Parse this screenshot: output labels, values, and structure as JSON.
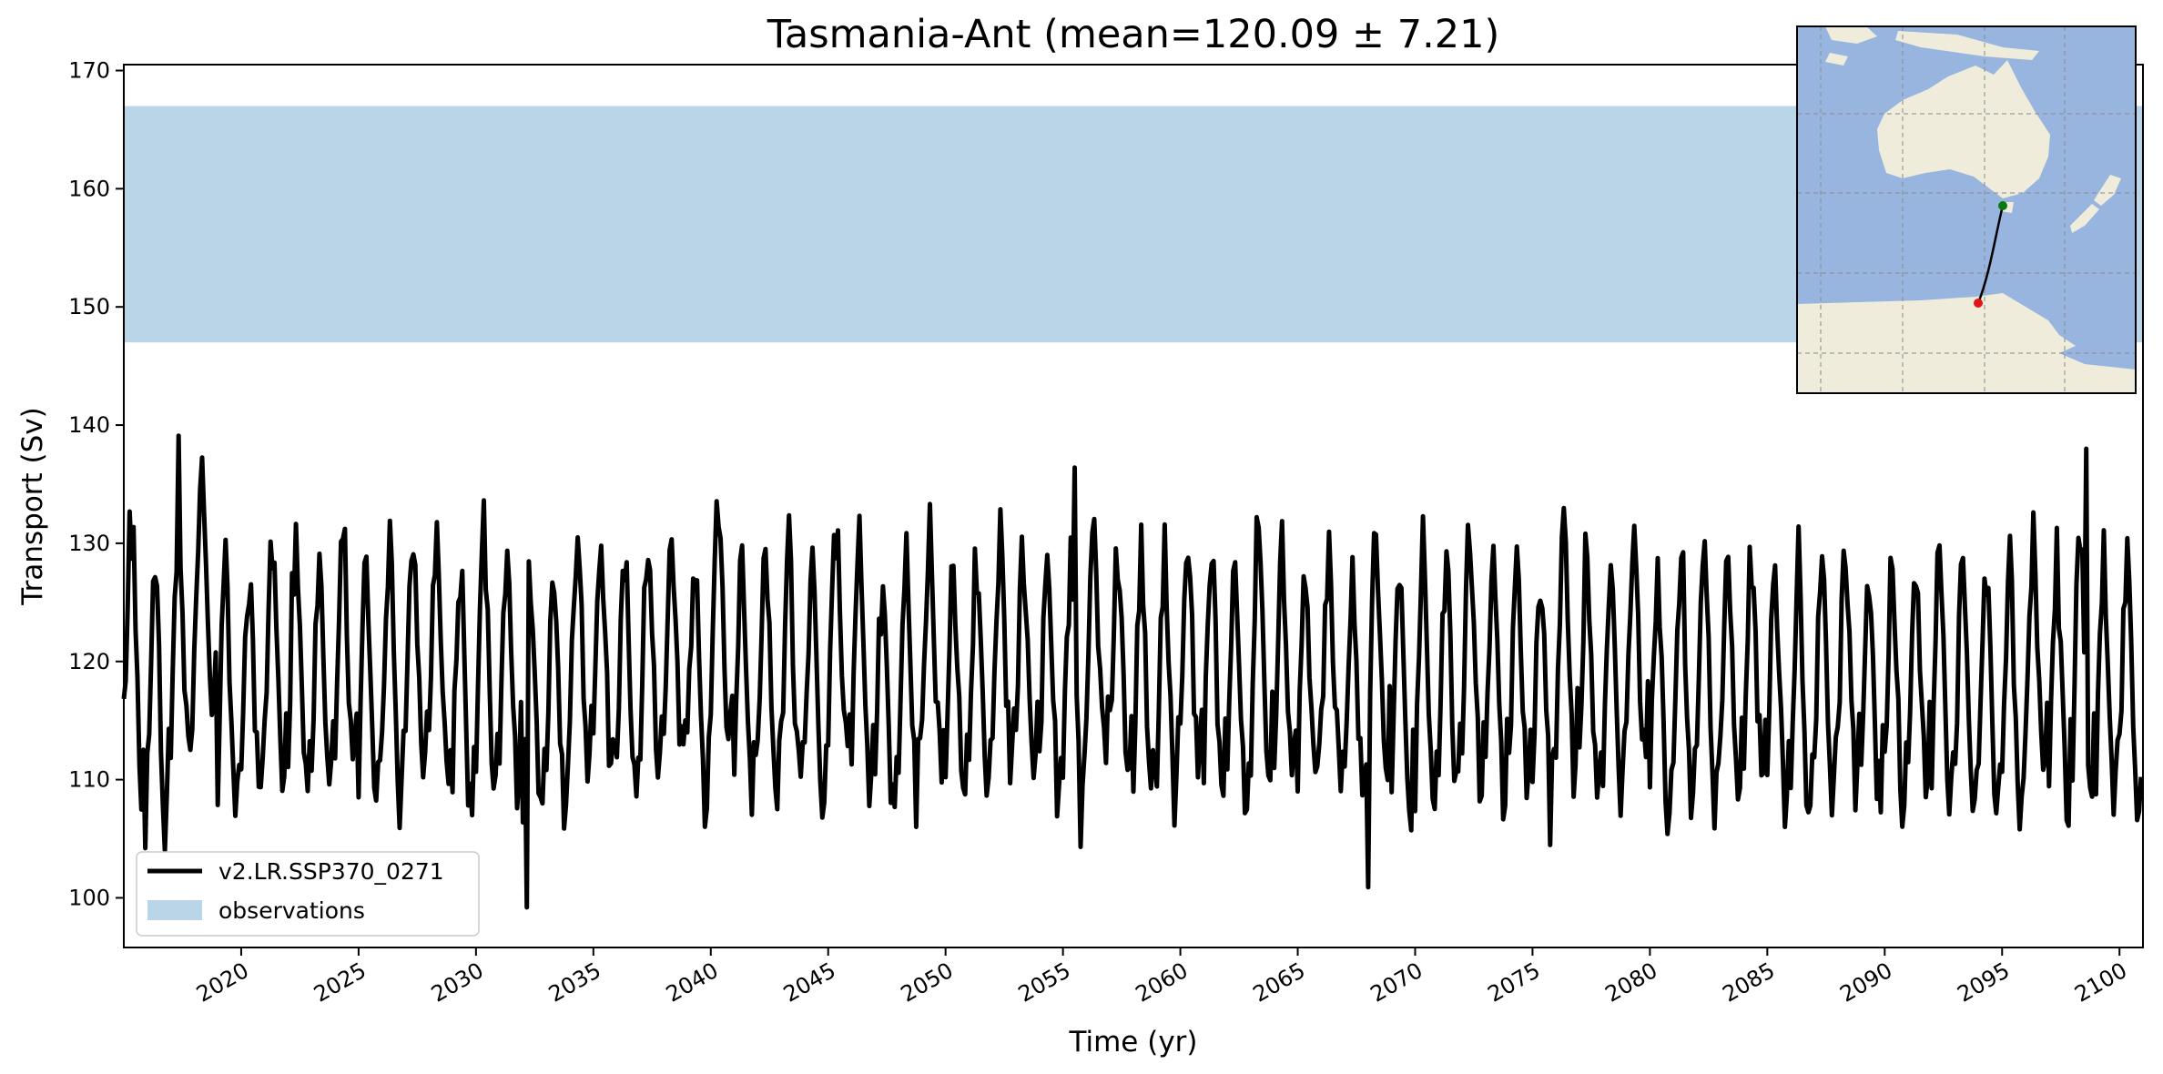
{
  "chart_data": {
    "type": "line",
    "title": "Tasmania-Ant (mean=120.09 ± 7.21)",
    "xlabel": "Time (yr)",
    "ylabel": "Transport (Sv)",
    "xlim": [
      2015,
      2101
    ],
    "ylim": [
      95.8,
      170.5
    ],
    "xticks": [
      2020,
      2025,
      2030,
      2035,
      2040,
      2045,
      2050,
      2055,
      2060,
      2065,
      2070,
      2075,
      2080,
      2085,
      2090,
      2095,
      2100
    ],
    "xtick_labels": [
      "2020",
      "2025",
      "2030",
      "2035",
      "2040",
      "2045",
      "2050",
      "2055",
      "2060",
      "2065",
      "2070",
      "2075",
      "2080",
      "2085",
      "2090",
      "2095",
      "2100"
    ],
    "yticks": [
      100,
      110,
      120,
      130,
      140,
      150,
      160,
      170
    ],
    "ytick_labels": [
      "100",
      "110",
      "120",
      "130",
      "140",
      "150",
      "160",
      "170"
    ],
    "grid": false,
    "legend_position": "lower-left",
    "observations_band": {
      "name": "observations",
      "ymin": 147,
      "ymax": 167,
      "color": "#bad5e7"
    },
    "series": [
      {
        "name": "v2.LR.SSP370_0271",
        "color": "#000000",
        "start_year": 2015,
        "step_years": 0.0833333,
        "monthly_cycle": [
          -7,
          -2,
          4,
          8,
          10,
          7,
          2,
          -3,
          -7,
          -10,
          -9,
          -5
        ],
        "annual_means": [
          121.5,
          117.5,
          121.5,
          126,
          117.5,
          119,
          121,
          120.5,
          118.5,
          121,
          118.5,
          119,
          121,
          120.5,
          118,
          120.5,
          119.5,
          117,
          118.5,
          121.5,
          120,
          119,
          120.5,
          121,
          119.5,
          123,
          119,
          120.5,
          119,
          118.5,
          121,
          120.5,
          118,
          119.5,
          120.5,
          118,
          119,
          121,
          119.5,
          119,
          118,
          121,
          120.5,
          119,
          118.5,
          120,
          119.5,
          118,
          120.5,
          119.5,
          118.5,
          120,
          117.5,
          120.5,
          118,
          117.5,
          119,
          120,
          118.5,
          119,
          118,
          120.5,
          119.5,
          118,
          121,
          117,
          118.5,
          119,
          118.5,
          119,
          118,
          116.5,
          118.5,
          120,
          117.5,
          118.5,
          119,
          119,
          118.5,
          118,
          117.5,
          119.5,
          118.5,
          120.5,
          118,
          118.5
        ],
        "extremes": [
          {
            "x": 2015.9,
            "y": 104.2
          },
          {
            "x": 2017.3,
            "y": 139.1
          },
          {
            "x": 2032.2,
            "y": 99.2
          },
          {
            "x": 2055.5,
            "y": 136.4
          },
          {
            "x": 2068.0,
            "y": 100.9
          },
          {
            "x": 2098.6,
            "y": 138.0
          }
        ]
      }
    ],
    "inset_map": {
      "description_labels": [],
      "land_color": "#efecdc",
      "ocean_color": "#98b5e0",
      "line_color": "#000000",
      "start_marker_color": "#e0141b",
      "end_marker_color": "#0a7a10"
    }
  },
  "legend": {
    "series_label": "v2.LR.SSP370_0271",
    "band_label": "observations"
  }
}
